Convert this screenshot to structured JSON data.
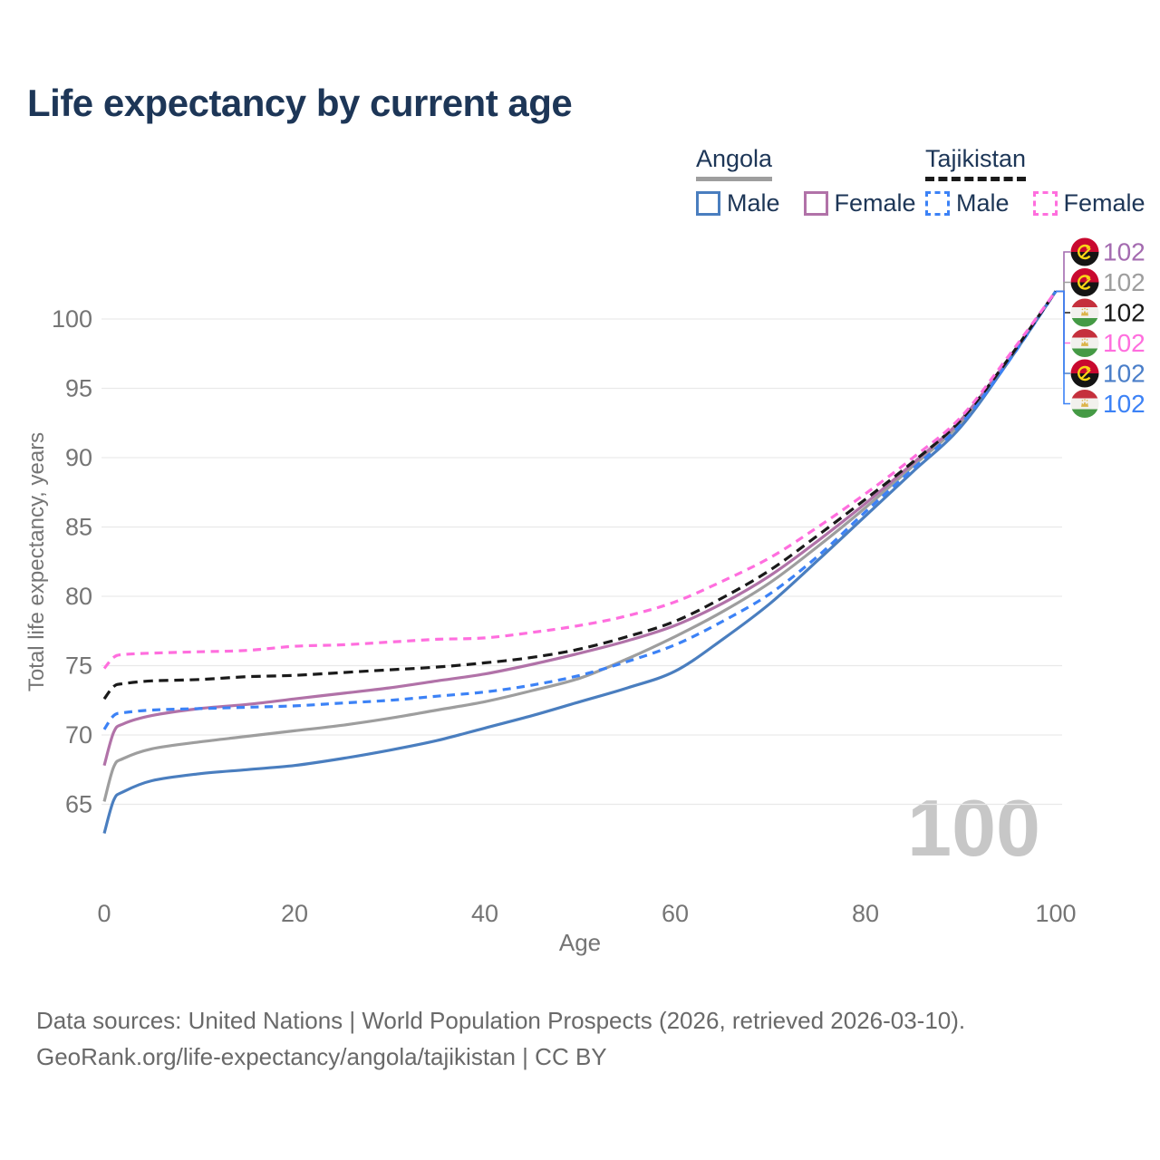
{
  "title": "Life expectancy by current age",
  "colors": {
    "title_text": "#1d3657",
    "axis_text": "#757575",
    "grid": "#e9e9e9",
    "watermark": "#c7c7c7",
    "footer_text": "#696969",
    "leader_line": "#9e9e9e"
  },
  "legend": {
    "groups": [
      {
        "label": "Angola",
        "line_style": "solid",
        "line_color": "#9e9e9e",
        "items": [
          {
            "label": "Male",
            "color": "#4a7ebf",
            "dashed": false
          },
          {
            "label": "Female",
            "color": "#b172a8",
            "dashed": false
          }
        ]
      },
      {
        "label": "Tajikistan",
        "line_style": "dashed",
        "line_color": "#1a1a1a",
        "items": [
          {
            "label": "Male",
            "color": "#3c82f6",
            "dashed": true
          },
          {
            "label": "Female",
            "color": "#ff6ede",
            "dashed": true
          }
        ]
      }
    ]
  },
  "chart_data": {
    "type": "line",
    "title": "Life expectancy by current age",
    "xlabel": "Age",
    "ylabel": "Total life expectancy, years",
    "xlim": [
      0,
      104
    ],
    "ylim": [
      61,
      103.5
    ],
    "xticks": [
      0,
      20,
      40,
      60,
      80,
      100
    ],
    "yticks": [
      65,
      70,
      75,
      80,
      85,
      90,
      95,
      100
    ],
    "grid": "horizontal-only",
    "legend_position": "top-right",
    "watermark": "100",
    "x": [
      0,
      1,
      2,
      5,
      10,
      15,
      20,
      25,
      30,
      35,
      40,
      45,
      50,
      55,
      60,
      65,
      70,
      75,
      80,
      85,
      90,
      95,
      100
    ],
    "series": [
      {
        "id": "angola_total",
        "name": "Angola (both sexes)",
        "color": "#9e9e9e",
        "dash": null,
        "values": [
          65.2,
          67.7,
          68.3,
          69.0,
          69.5,
          69.9,
          70.3,
          70.7,
          71.2,
          71.8,
          72.4,
          73.2,
          74.1,
          75.5,
          77.1,
          78.9,
          81.0,
          83.6,
          86.4,
          89.4,
          92.5,
          97.0,
          102
        ]
      },
      {
        "id": "angola_female",
        "name": "Angola Female",
        "color": "#b172a8",
        "dash": null,
        "values": [
          67.8,
          70.2,
          70.8,
          71.4,
          71.9,
          72.2,
          72.6,
          73.0,
          73.4,
          73.9,
          74.4,
          75.1,
          75.9,
          76.8,
          77.9,
          79.5,
          81.5,
          84.0,
          86.7,
          89.6,
          92.7,
          97.1,
          102
        ]
      },
      {
        "id": "angola_male",
        "name": "Angola Male",
        "color": "#4a7ebf",
        "dash": null,
        "values": [
          62.9,
          65.3,
          65.9,
          66.7,
          67.2,
          67.5,
          67.8,
          68.3,
          68.9,
          69.6,
          70.5,
          71.4,
          72.4,
          73.4,
          74.6,
          76.9,
          79.5,
          82.6,
          85.8,
          89.0,
          92.2,
          96.9,
          102
        ]
      },
      {
        "id": "tajikistan_male",
        "name": "Tajikistan Male",
        "color": "#3c82f6",
        "dash": [
          9,
          6.5
        ],
        "values": [
          70.4,
          71.4,
          71.6,
          71.8,
          71.9,
          72.0,
          72.1,
          72.3,
          72.5,
          72.8,
          73.1,
          73.6,
          74.3,
          75.3,
          76.5,
          78.2,
          80.2,
          82.9,
          86.1,
          89.2,
          92.4,
          96.9,
          102
        ]
      },
      {
        "id": "tajikistan_total",
        "name": "Tajikistan (both sexes)",
        "color": "#1a1a1a",
        "dash": [
          10.5,
          6.5
        ],
        "values": [
          72.6,
          73.5,
          73.7,
          73.9,
          74.0,
          74.2,
          74.3,
          74.5,
          74.7,
          74.9,
          75.2,
          75.6,
          76.2,
          77.1,
          78.2,
          79.9,
          81.9,
          84.4,
          87.0,
          89.7,
          92.7,
          97.1,
          102
        ]
      },
      {
        "id": "tajikistan_female",
        "name": "Tajikistan Female",
        "color": "#ff6ede",
        "dash": [
          9,
          6.5
        ],
        "values": [
          74.8,
          75.6,
          75.8,
          75.9,
          76.0,
          76.1,
          76.4,
          76.5,
          76.7,
          76.9,
          77.0,
          77.4,
          77.9,
          78.6,
          79.6,
          81.1,
          82.8,
          85.0,
          87.4,
          90.0,
          92.9,
          97.3,
          102
        ]
      }
    ],
    "end_labels": [
      {
        "series": "angola_female",
        "flag": "angola",
        "text": "102",
        "color": "#a46bb0"
      },
      {
        "series": "angola_total",
        "flag": "angola",
        "text": "102",
        "color": "#9e9e9e"
      },
      {
        "series": "tajikistan_total",
        "flag": "tajikistan",
        "text": "102",
        "color": "#1a1a1a"
      },
      {
        "series": "tajikistan_female",
        "flag": "tajikistan",
        "text": "102",
        "color": "#ff6ede"
      },
      {
        "series": "angola_male",
        "flag": "angola",
        "text": "102",
        "color": "#4a7ec9"
      },
      {
        "series": "tajikistan_male",
        "flag": "tajikistan",
        "text": "102",
        "color": "#3c82f6"
      }
    ]
  },
  "footer": {
    "line1": "Data sources: United Nations | World Population Prospects (2026, retrieved 2026-03-10).",
    "line2": "GeoRank.org/life-expectancy/angola/tajikistan | CC BY"
  }
}
